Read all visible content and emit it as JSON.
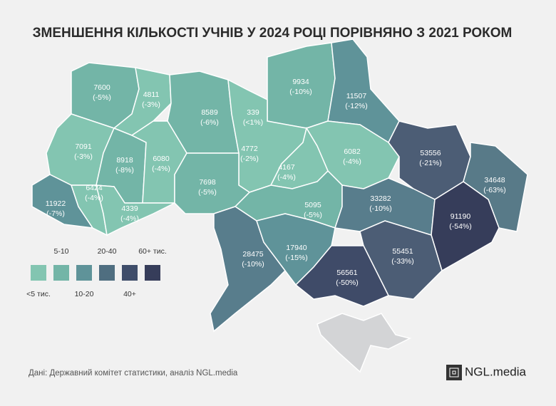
{
  "title": "ЗМЕНШЕННЯ КІЛЬКОСТІ УЧНІВ У 2024 РОЦІ ПОРІВНЯНО З 2021 РОКОМ",
  "regions": [
    {
      "value": 7600,
      "change": "(-5%)",
      "color": "#73b5a7"
    },
    {
      "value": 4811,
      "change": "(-3%)",
      "color": "#83c5b1"
    },
    {
      "value": 8589,
      "change": "(-6%)",
      "color": "#73b5a7"
    },
    {
      "value": 339,
      "change": "(<1%)",
      "color": "#83c5b1"
    },
    {
      "value": 9934,
      "change": "(-10%)",
      "color": "#73b5a7"
    },
    {
      "value": 11507,
      "change": "(-12%)",
      "color": "#5f9399"
    },
    {
      "value": 7091,
      "change": "(-3%)",
      "color": "#83c5b1"
    },
    {
      "value": 8918,
      "change": "(-8%)",
      "color": "#73b5a7"
    },
    {
      "value": 6080,
      "change": "(-4%)",
      "color": "#83c5b1"
    },
    {
      "value": 4772,
      "change": "(-2%)",
      "color": "#83c5b1"
    },
    {
      "value": 6082,
      "change": "(-4%)",
      "color": "#83c5b1"
    },
    {
      "value": 53556,
      "change": "(-21%)",
      "color": "#4c5d75"
    },
    {
      "value": 34648,
      "change": "(-63%)",
      "color": "#587a88"
    },
    {
      "value": 11922,
      "change": "(-7%)",
      "color": "#5f9399"
    },
    {
      "value": 6424,
      "change": "(-4%)",
      "color": "#83c5b1"
    },
    {
      "value": 4339,
      "change": "(-4%)",
      "color": "#83c5b1"
    },
    {
      "value": 7698,
      "change": "(-5%)",
      "color": "#73b5a7"
    },
    {
      "value": 4167,
      "change": "(-4%)",
      "color": "#83c5b1"
    },
    {
      "value": 5095,
      "change": "(-5%)",
      "color": "#73b5a7"
    },
    {
      "value": 33282,
      "change": "(-10%)",
      "color": "#587d8c"
    },
    {
      "value": 91190,
      "change": "(-54%)",
      "color": "#363d5a"
    },
    {
      "value": 28475,
      "change": "(-10%)",
      "color": "#587d8c"
    },
    {
      "value": 17940,
      "change": "(-15%)",
      "color": "#5f9399"
    },
    {
      "value": 55451,
      "change": "(-33%)",
      "color": "#4c5d75"
    },
    {
      "value": 56561,
      "change": "(-50%)",
      "color": "#3f4b68"
    }
  ],
  "legend": [
    {
      "label": "<5 тис.",
      "color": "#83c5b1"
    },
    {
      "label": "5-10",
      "color": "#73b5a7"
    },
    {
      "label": "10-20",
      "color": "#5f9399"
    },
    {
      "label": "20-40",
      "color": "#4f6e80"
    },
    {
      "label": "40+",
      "color": "#3f4d6a"
    },
    {
      "label": "60+ тис.",
      "color": "#363d5a"
    }
  ],
  "source": "Дані: Державний комітет статистики, аналіз NGL.media",
  "logo": "NGL.media"
}
